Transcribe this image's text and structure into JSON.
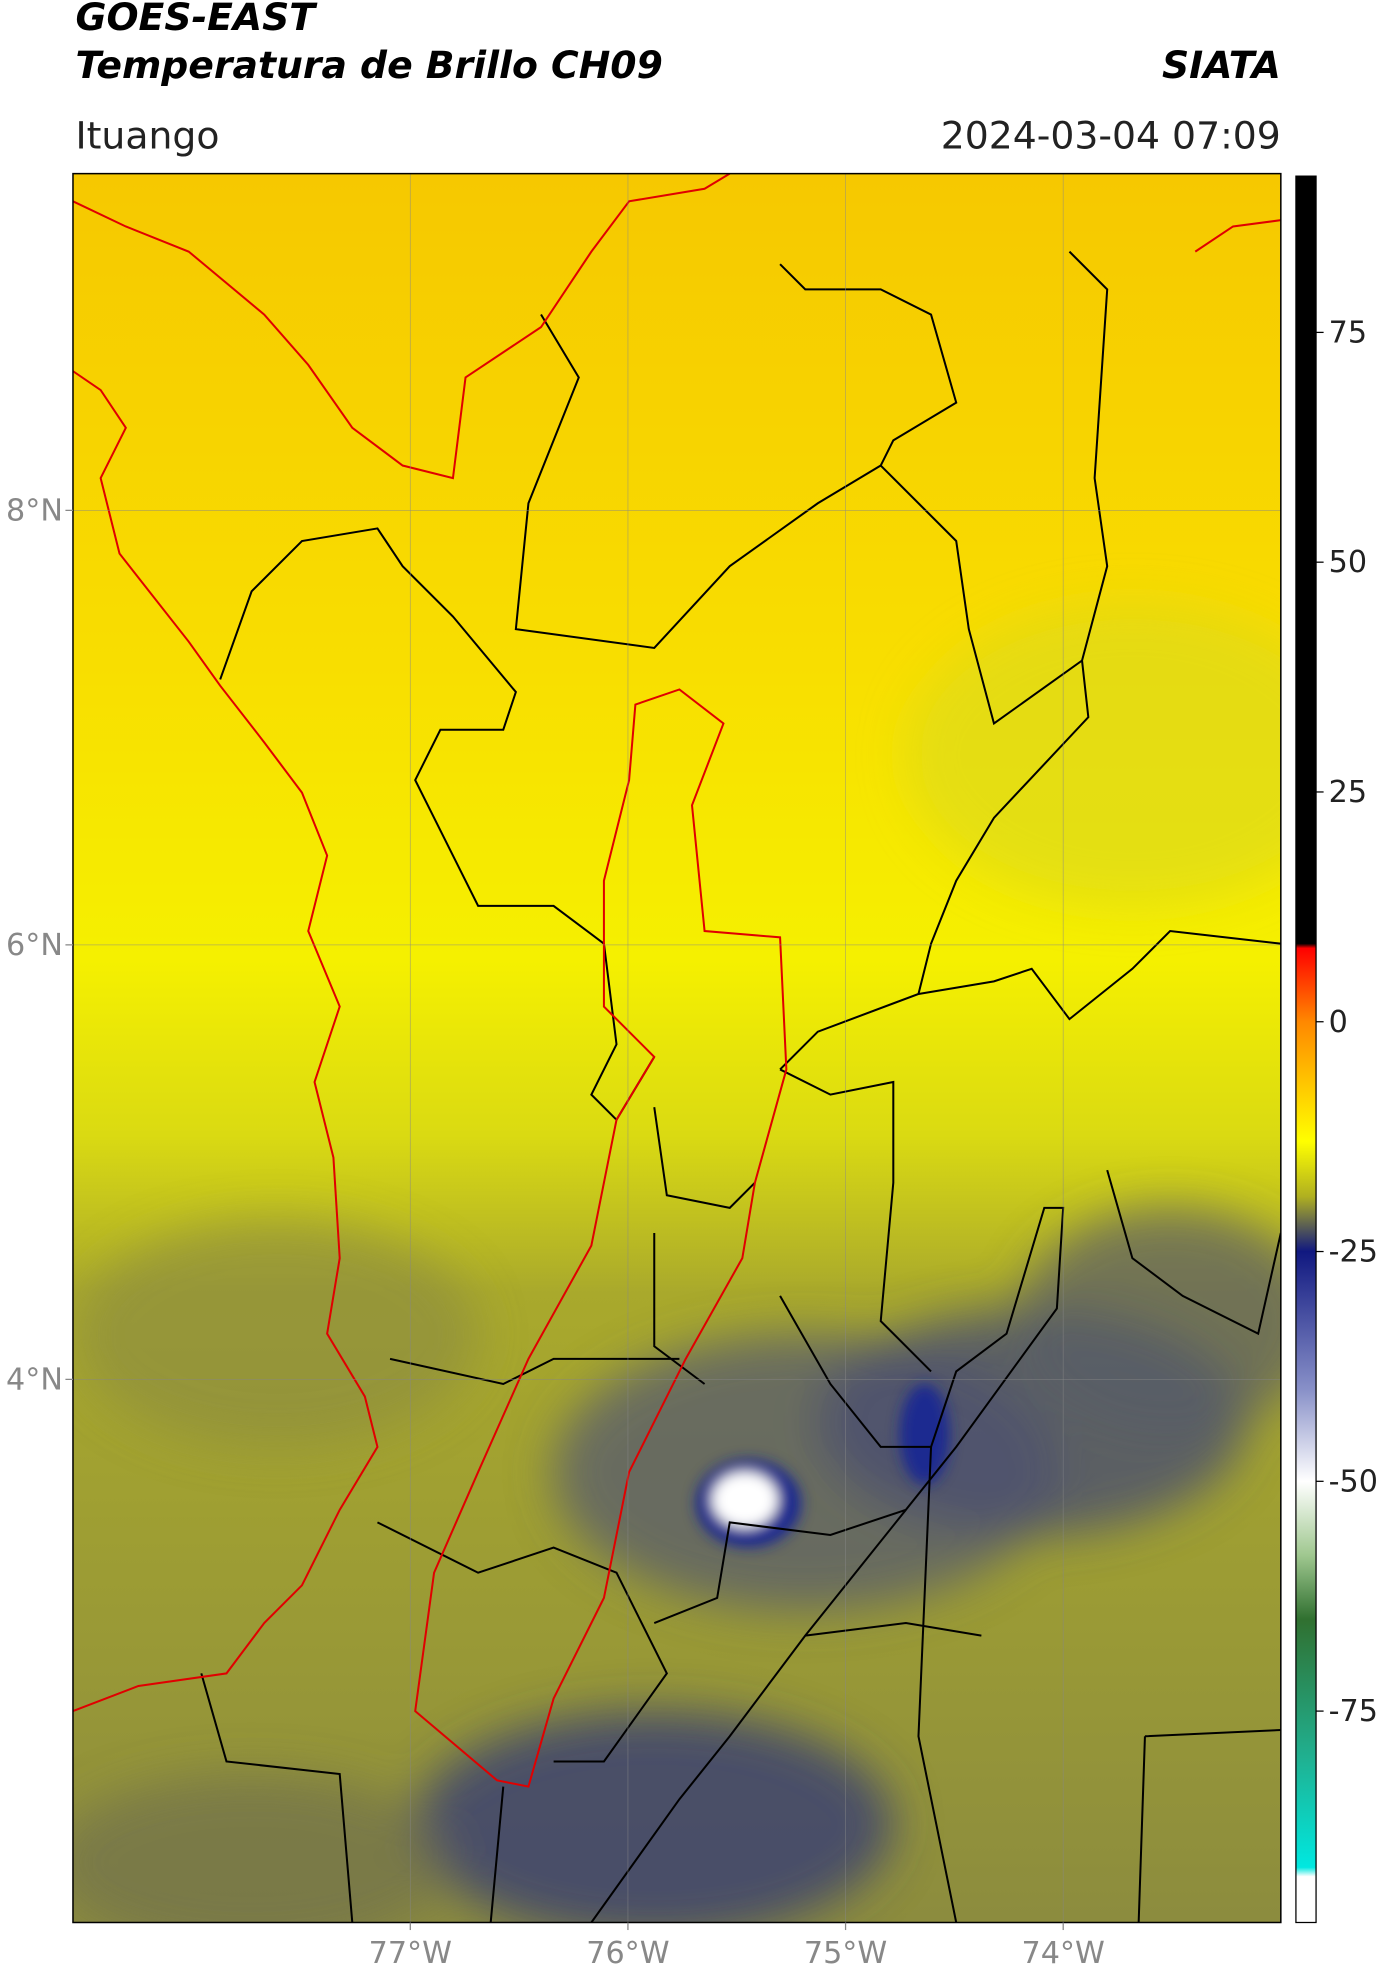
{
  "header": {
    "title": "GOES-EAST",
    "subtitle": "Temperatura de Brillo CH09",
    "source": "SIATA",
    "location": "Ituango",
    "datetime": "2024-03-04 07:09"
  },
  "map": {
    "xlim": [
      -78.55,
      -73.0
    ],
    "ylim": [
      1.5,
      9.55
    ],
    "xticks": [
      {
        "value": -77,
        "label": "77°W"
      },
      {
        "value": -76,
        "label": "76°W"
      },
      {
        "value": -75,
        "label": "75°W"
      },
      {
        "value": -74,
        "label": "74°W"
      }
    ],
    "yticks": [
      {
        "value": 8,
        "label": "8°N"
      },
      {
        "value": 6,
        "label": "6°N"
      },
      {
        "value": 4,
        "label": "4°N"
      }
    ],
    "grid": true
  },
  "colorbar": {
    "lim": [
      -98,
      92
    ],
    "ticks": [
      75,
      50,
      25,
      0,
      -25,
      -50,
      -75
    ],
    "colors": [
      {
        "value": 92,
        "color": "#000000"
      },
      {
        "value": 8.5,
        "color": "#000000"
      },
      {
        "value": 8,
        "color": "#ff0000"
      },
      {
        "value": 0,
        "color": "#ff8800"
      },
      {
        "value": -13,
        "color": "#ffff00"
      },
      {
        "value": -19,
        "color": "#b0b020"
      },
      {
        "value": -25,
        "color": "#101880"
      },
      {
        "value": -40,
        "color": "#8890c8"
      },
      {
        "value": -50,
        "color": "#ffffff"
      },
      {
        "value": -58,
        "color": "#a0c890"
      },
      {
        "value": -65,
        "color": "#307030"
      },
      {
        "value": -80,
        "color": "#20b090"
      },
      {
        "value": -92,
        "color": "#00e8e0"
      },
      {
        "value": -93,
        "color": "#ffffff"
      },
      {
        "value": -98,
        "color": "#ffffff"
      }
    ]
  }
}
